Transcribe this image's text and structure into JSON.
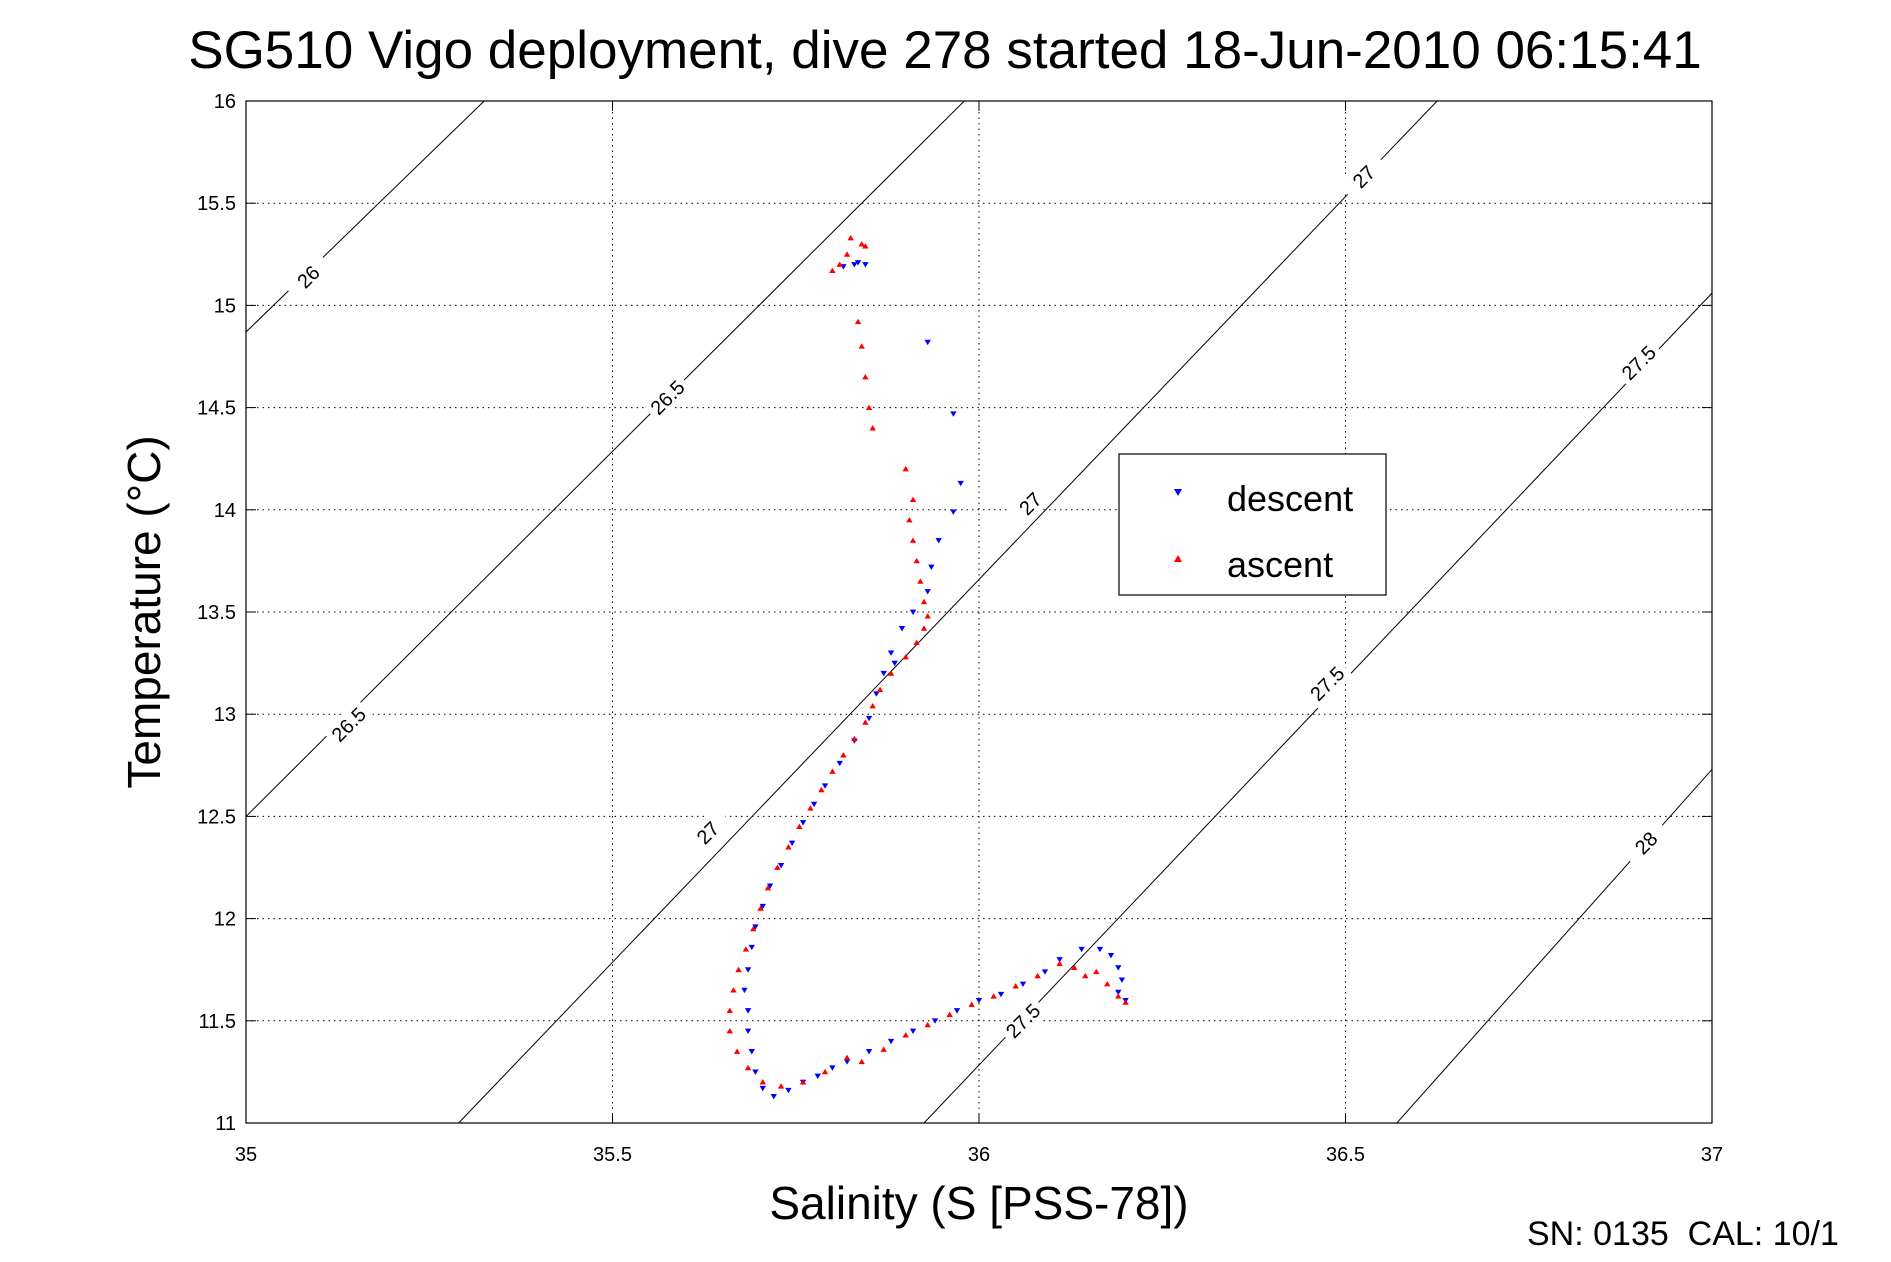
{
  "chart_data": {
    "type": "scatter",
    "title": "SG510 Vigo deployment, dive 278 started 18-Jun-2010 06:15:41",
    "xlabel": "Salinity (S [PSS-78])",
    "ylabel": "Temperature (°C)",
    "xlim": [
      35,
      37
    ],
    "ylim": [
      11,
      16
    ],
    "xticks": [
      "35",
      "35.5",
      "36",
      "36.5",
      "37"
    ],
    "yticks": [
      "11",
      "11.5",
      "12",
      "12.5",
      "13",
      "13.5",
      "14",
      "14.5",
      "15",
      "15.5",
      "16"
    ],
    "grid": true,
    "legend_position": "right-center",
    "footer": "SN: 0135  CAL: 10/1",
    "contours": [
      {
        "label": "26",
        "points": [
          [
            35.0,
            14.87
          ],
          [
            35.325,
            16.0
          ]
        ]
      },
      {
        "label": "26.5",
        "points": [
          [
            35.0,
            12.5
          ],
          [
            35.98,
            16.0
          ]
        ]
      },
      {
        "label": "27",
        "points": [
          [
            35.29,
            11.0
          ],
          [
            36.625,
            16.0
          ]
        ]
      },
      {
        "label": "27.5",
        "points": [
          [
            35.925,
            11.0
          ],
          [
            37.0,
            15.06
          ]
        ]
      },
      {
        "label": "28",
        "points": [
          [
            36.57,
            11.0
          ],
          [
            37.0,
            12.73
          ]
        ]
      }
    ],
    "contour_labels": [
      {
        "text": "26",
        "s": 35.085,
        "t": 15.14
      },
      {
        "text": "26.5",
        "s": 35.575,
        "t": 14.55
      },
      {
        "text": "26.5",
        "s": 35.14,
        "t": 12.95
      },
      {
        "text": "27",
        "s": 36.525,
        "t": 15.63
      },
      {
        "text": "27",
        "s": 36.07,
        "t": 14.03
      },
      {
        "text": "27",
        "s": 35.63,
        "t": 12.42
      },
      {
        "text": "27.5",
        "s": 36.9,
        "t": 14.72
      },
      {
        "text": "27.5",
        "s": 36.475,
        "t": 13.15
      },
      {
        "text": "27.5",
        "s": 36.06,
        "t": 11.5
      },
      {
        "text": "28",
        "s": 36.91,
        "t": 12.37
      }
    ],
    "series": [
      {
        "name": "descent",
        "color": "#0000ff",
        "marker": "triangle-down",
        "points": [
          [
            35.83,
            15.2
          ],
          [
            35.845,
            15.2
          ],
          [
            35.815,
            15.19
          ],
          [
            35.835,
            15.21
          ],
          [
            35.93,
            14.82
          ],
          [
            35.965,
            14.47
          ],
          [
            35.975,
            14.13
          ],
          [
            35.965,
            13.99
          ],
          [
            35.945,
            13.85
          ],
          [
            35.935,
            13.72
          ],
          [
            35.93,
            13.6
          ],
          [
            35.91,
            13.5
          ],
          [
            35.895,
            13.42
          ],
          [
            35.88,
            13.3
          ],
          [
            35.885,
            13.25
          ],
          [
            35.87,
            13.2
          ],
          [
            35.86,
            13.1
          ],
          [
            35.85,
            12.98
          ],
          [
            35.83,
            12.87
          ],
          [
            35.81,
            12.76
          ],
          [
            35.79,
            12.65
          ],
          [
            35.775,
            12.56
          ],
          [
            35.76,
            12.47
          ],
          [
            35.745,
            12.37
          ],
          [
            35.73,
            12.26
          ],
          [
            35.715,
            12.16
          ],
          [
            35.705,
            12.06
          ],
          [
            35.695,
            11.96
          ],
          [
            35.69,
            11.86
          ],
          [
            35.685,
            11.75
          ],
          [
            35.68,
            11.65
          ],
          [
            35.685,
            11.55
          ],
          [
            35.685,
            11.45
          ],
          [
            35.69,
            11.35
          ],
          [
            35.695,
            11.25
          ],
          [
            35.705,
            11.17
          ],
          [
            35.72,
            11.13
          ],
          [
            35.74,
            11.16
          ],
          [
            35.76,
            11.2
          ],
          [
            35.78,
            11.23
          ],
          [
            35.8,
            11.27
          ],
          [
            35.82,
            11.3
          ],
          [
            35.85,
            11.35
          ],
          [
            35.88,
            11.4
          ],
          [
            35.91,
            11.45
          ],
          [
            35.94,
            11.5
          ],
          [
            35.97,
            11.55
          ],
          [
            36.0,
            11.6
          ],
          [
            36.03,
            11.63
          ],
          [
            36.06,
            11.68
          ],
          [
            36.09,
            11.74
          ],
          [
            36.11,
            11.8
          ],
          [
            36.14,
            11.85
          ],
          [
            36.165,
            11.85
          ],
          [
            36.18,
            11.82
          ],
          [
            36.19,
            11.76
          ],
          [
            36.195,
            11.7
          ],
          [
            36.19,
            11.64
          ],
          [
            36.2,
            11.6
          ]
        ]
      },
      {
        "name": "ascent",
        "color": "#ff0000",
        "marker": "triangle-up",
        "points": [
          [
            35.825,
            15.33
          ],
          [
            35.84,
            15.3
          ],
          [
            35.82,
            15.25
          ],
          [
            35.81,
            15.2
          ],
          [
            35.8,
            15.17
          ],
          [
            35.845,
            15.29
          ],
          [
            35.835,
            14.92
          ],
          [
            35.84,
            14.8
          ],
          [
            35.845,
            14.65
          ],
          [
            35.85,
            14.5
          ],
          [
            35.855,
            14.4
          ],
          [
            35.9,
            14.2
          ],
          [
            35.91,
            14.05
          ],
          [
            35.905,
            13.95
          ],
          [
            35.91,
            13.85
          ],
          [
            35.915,
            13.75
          ],
          [
            35.92,
            13.65
          ],
          [
            35.925,
            13.55
          ],
          [
            35.93,
            13.48
          ],
          [
            35.925,
            13.42
          ],
          [
            35.915,
            13.35
          ],
          [
            35.9,
            13.28
          ],
          [
            35.88,
            13.2
          ],
          [
            35.865,
            13.12
          ],
          [
            35.855,
            13.04
          ],
          [
            35.845,
            12.96
          ],
          [
            35.83,
            12.88
          ],
          [
            35.815,
            12.8
          ],
          [
            35.8,
            12.72
          ],
          [
            35.785,
            12.63
          ],
          [
            35.77,
            12.54
          ],
          [
            35.755,
            12.45
          ],
          [
            35.74,
            12.35
          ],
          [
            35.725,
            12.25
          ],
          [
            35.712,
            12.15
          ],
          [
            35.702,
            12.05
          ],
          [
            35.692,
            11.95
          ],
          [
            35.682,
            11.85
          ],
          [
            35.672,
            11.75
          ],
          [
            35.665,
            11.65
          ],
          [
            35.66,
            11.55
          ],
          [
            35.66,
            11.45
          ],
          [
            35.67,
            11.35
          ],
          [
            35.685,
            11.27
          ],
          [
            35.705,
            11.2
          ],
          [
            35.73,
            11.18
          ],
          [
            35.76,
            11.2
          ],
          [
            35.79,
            11.25
          ],
          [
            35.82,
            11.32
          ],
          [
            35.84,
            11.3
          ],
          [
            35.87,
            11.36
          ],
          [
            35.9,
            11.43
          ],
          [
            35.93,
            11.48
          ],
          [
            35.96,
            11.53
          ],
          [
            35.99,
            11.58
          ],
          [
            36.02,
            11.62
          ],
          [
            36.05,
            11.67
          ],
          [
            36.08,
            11.72
          ],
          [
            36.11,
            11.78
          ],
          [
            36.13,
            11.76
          ],
          [
            36.145,
            11.72
          ],
          [
            36.16,
            11.74
          ],
          [
            36.175,
            11.68
          ],
          [
            36.19,
            11.62
          ],
          [
            36.2,
            11.59
          ]
        ]
      }
    ]
  }
}
